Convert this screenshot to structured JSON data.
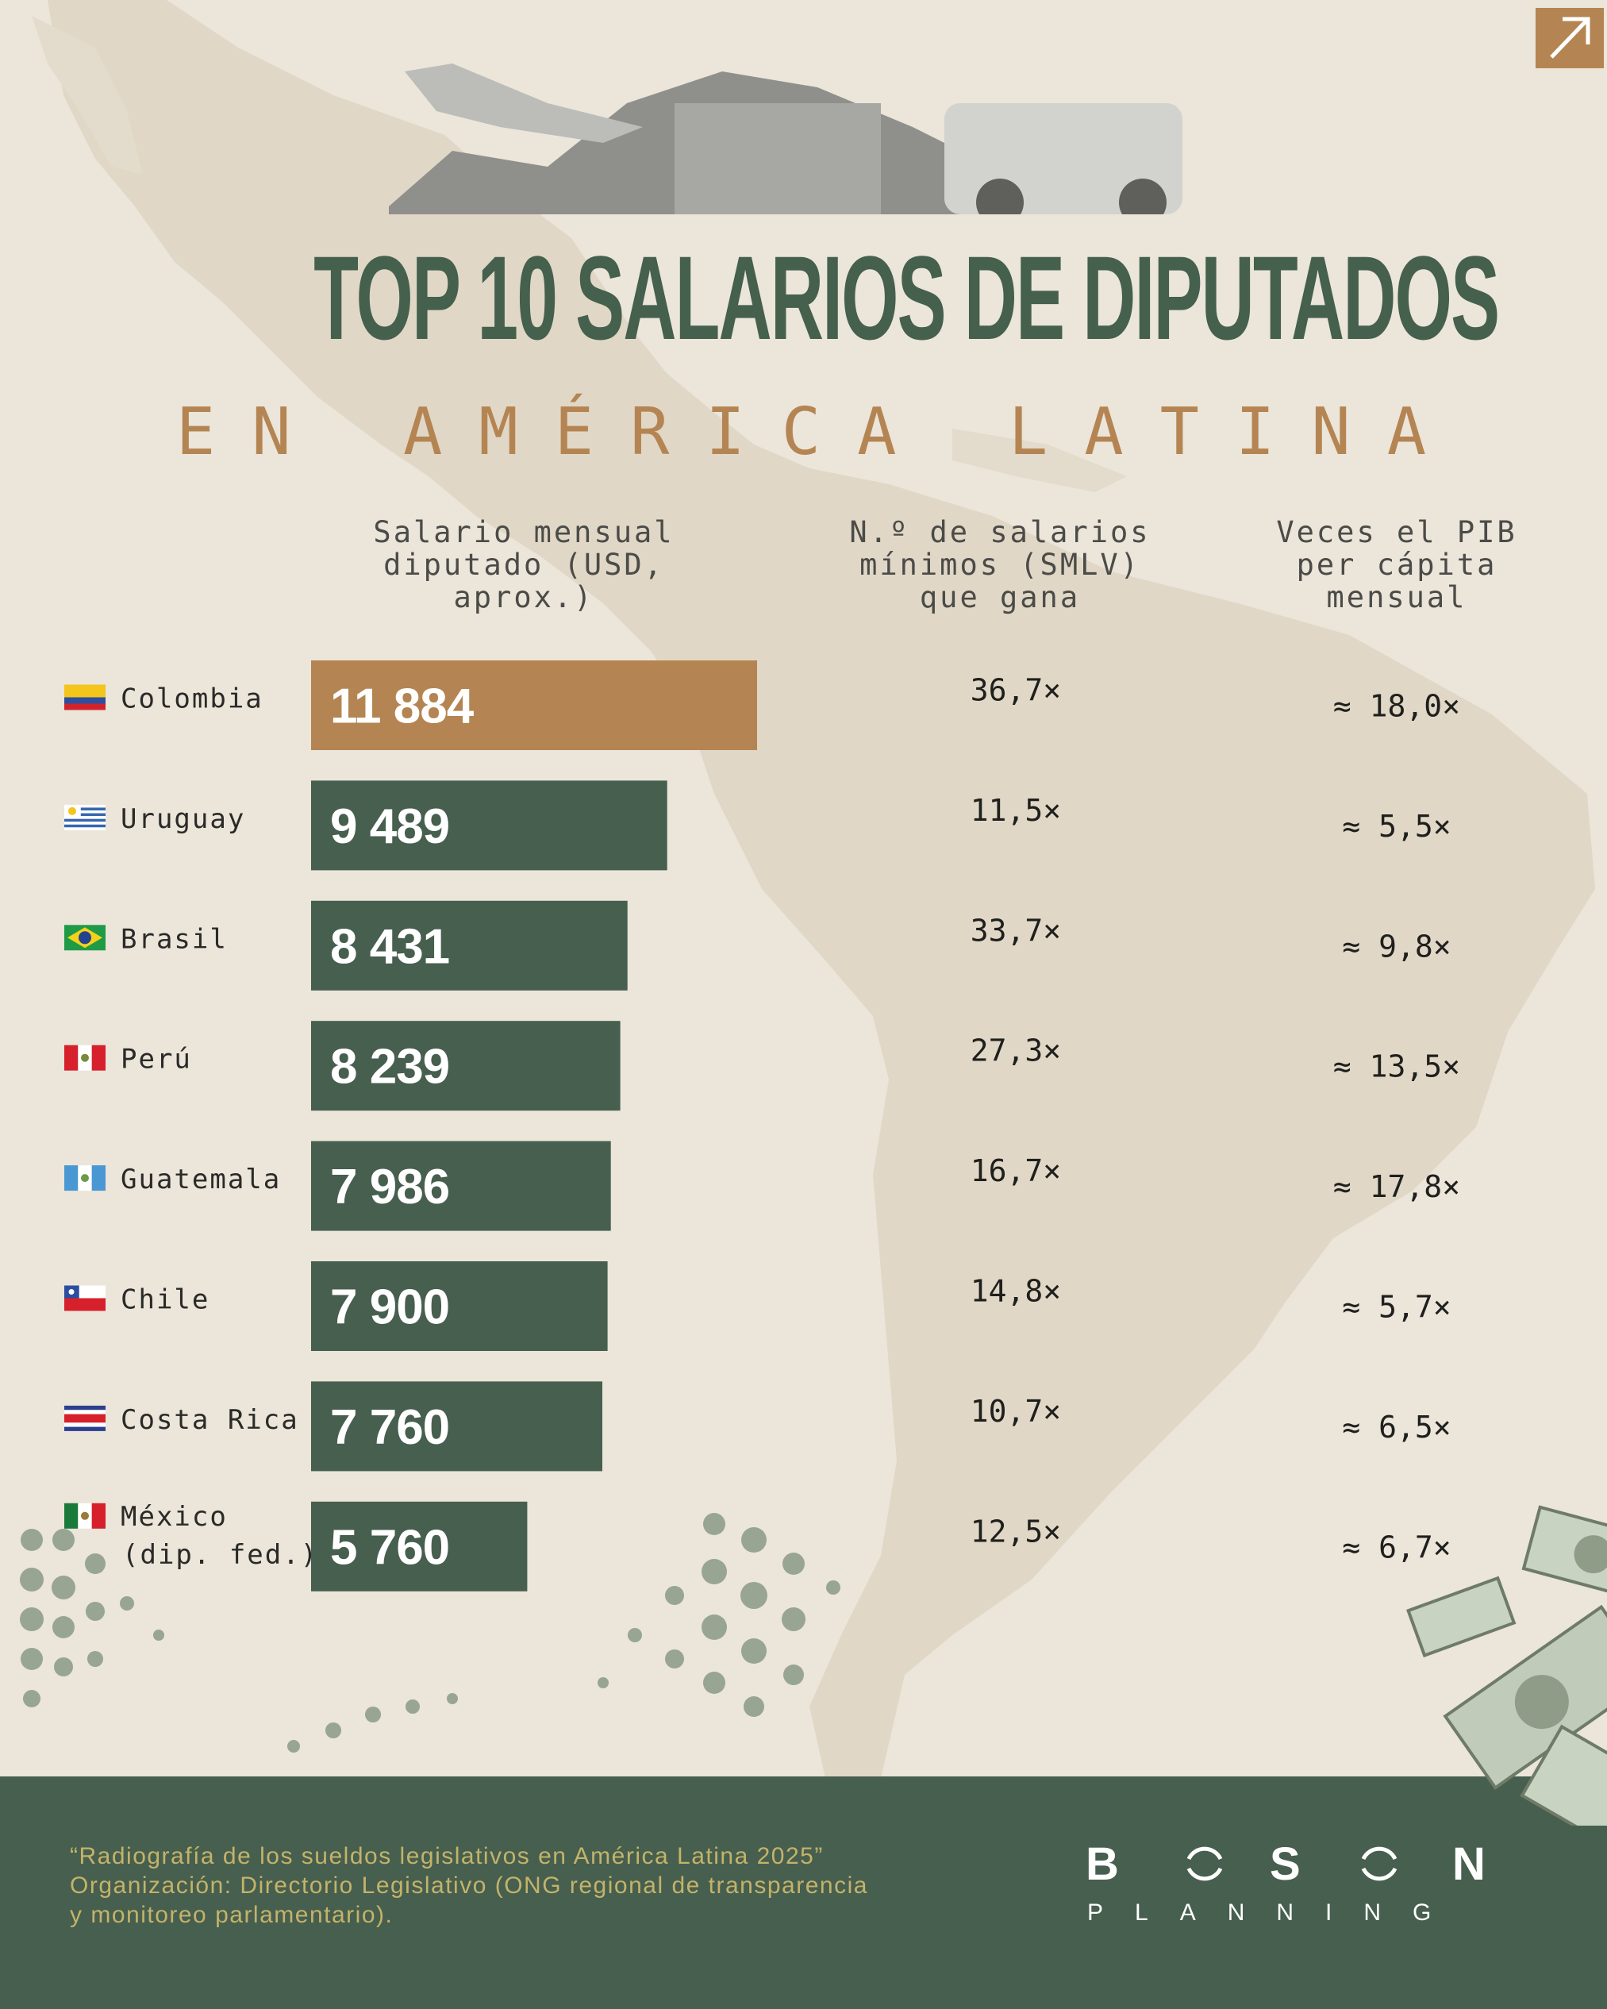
{
  "title": "TOP 10 SALARIOS DE DIPUTADOS",
  "subtitle": "EN AMÉRICA LATINA",
  "column_headers": {
    "salary": "Salario mensual\ndiputado (USD,\naprox.)",
    "min_wages": "N.º de salarios\nmínimos (SMLV)\nque gana",
    "gdp": "Veces el PIB\nper cápita\nmensual"
  },
  "colors": {
    "highlight_bar": "#b48552",
    "bar": "#475f4e",
    "title": "#45604d",
    "subtitle": "#b48552",
    "footer_bg": "#475f4e",
    "footer_text": "#c3b36a"
  },
  "icons": [
    "arrow-up-right-icon",
    "flag-icon"
  ],
  "chart_data": {
    "type": "bar",
    "orientation": "horizontal",
    "categories": [
      "Colombia",
      "Uruguay",
      "Brasil",
      "Perú",
      "Guatemala",
      "Chile",
      "Costa Rica",
      "México\n(dip. fed.)"
    ],
    "series": [
      {
        "values": [
          11884,
          9489,
          8431,
          8239,
          7986,
          7900,
          7760,
          5760
        ],
        "labels": [
          "11 884",
          "9 489",
          "8 431",
          "8 239",
          "7 986",
          "7 900",
          "7 760",
          "5 760"
        ]
      }
    ],
    "min_wages_labels": [
      "36,7×",
      "11,5×",
      "33,7×",
      "27,3×",
      "16,7×",
      "14,8×",
      "10,7×",
      "12,5×"
    ],
    "gdp_labels": [
      "≈ 18,0×",
      "≈ 5,5×",
      "≈ 9,8×",
      "≈ 13,5×",
      "≈ 17,8×",
      "≈ 5,7×",
      "≈ 6,5×",
      "≈ 6,7×"
    ],
    "highlight_index": 0,
    "xlim": [
      0,
      11884
    ]
  },
  "footer": {
    "note": "“Radiografía de los sueldos legislativos en América Latina 2025”\n Organización: Directorio Legislativo (ONG regional de transparencia\ny monitoreo parlamentario).",
    "logo": "BOSON",
    "logo_sub": "PLANNING"
  }
}
